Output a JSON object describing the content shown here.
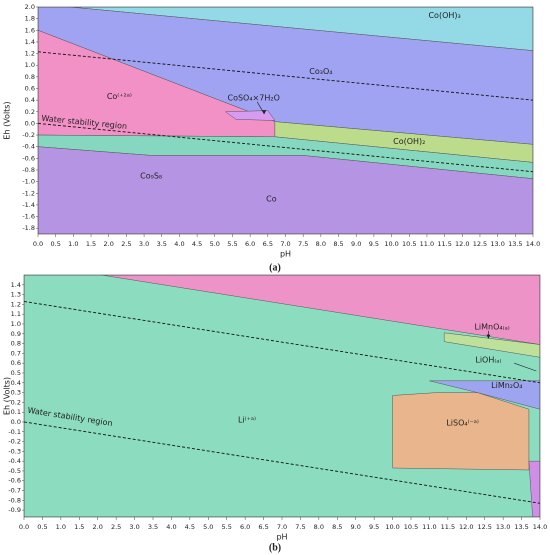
{
  "chart_data": [
    {
      "type": "region",
      "caption": "(a)",
      "x_label": "pH",
      "y_label": "Eh (Volts)",
      "xlim": [
        0,
        14
      ],
      "ylim": [
        -1.9,
        2.0
      ],
      "xticks": [
        {
          "value": 0,
          "label": "0.0"
        },
        0.5,
        {
          "value": 1,
          "label": "1.0"
        },
        1.5,
        {
          "value": 2,
          "label": "2.0"
        },
        2.5,
        {
          "value": 3,
          "label": "3.0"
        },
        3.5,
        {
          "value": 4,
          "label": "4.0"
        },
        4.5,
        {
          "value": 5,
          "label": "5.0"
        },
        5.5,
        {
          "value": 6,
          "label": "6.0"
        },
        6.5,
        {
          "value": 7,
          "label": "7.0"
        },
        7.5,
        {
          "value": 8,
          "label": "8.0"
        },
        8.5,
        {
          "value": 9,
          "label": "9.0"
        },
        9.5,
        {
          "value": 10,
          "label": "10.0"
        },
        10.5,
        {
          "value": 11,
          "label": "11.0"
        },
        11.5,
        {
          "value": 12,
          "label": "12.0"
        },
        12.5,
        {
          "value": 13,
          "label": "13.0"
        },
        13.5,
        {
          "value": 14,
          "label": "14.0"
        }
      ],
      "yticks": [
        {
          "value": 2,
          "label": "2.0"
        },
        1.8,
        1.6,
        1.4,
        1.2,
        {
          "value": 1,
          "label": "1.0"
        },
        0.8,
        0.6,
        0.4,
        0.2,
        {
          "value": 0,
          "label": "0.0"
        },
        -0.2,
        -0.4,
        -0.6,
        -0.8,
        {
          "value": -1,
          "label": "-1.0"
        },
        -1.2,
        -1.4,
        -1.6,
        -1.8
      ],
      "regions": [
        {
          "label": "Co(OH)₃",
          "color": "#93d9e6",
          "x": [
            0.9,
            14,
            14
          ],
          "y": [
            2.0,
            2.0,
            1.25
          ]
        },
        {
          "label": "Co₃O₄",
          "color": "#a0a3f2",
          "x": [
            0,
            0.9,
            14,
            14,
            6.7,
            0
          ],
          "y": [
            2.0,
            2.0,
            1.25,
            -0.36,
            0.03,
            1.6
          ]
        },
        {
          "label": "Co⁽⁺²ᵃ⁾",
          "color": "#f291c6",
          "x": [
            0,
            6.7,
            6.7,
            0
          ],
          "y": [
            1.6,
            0.03,
            -0.23,
            -0.2
          ]
        },
        {
          "label": "CoSO₄×7H₂O",
          "color": "#d59cf2",
          "x": [
            5.3,
            6.5,
            6.7,
            5.6
          ],
          "y": [
            0.2,
            0.22,
            0.05,
            0.07
          ]
        },
        {
          "label": "Co(OH)₂",
          "color": "#bcdc8c",
          "x": [
            6.7,
            14,
            14,
            6.7
          ],
          "y": [
            0.03,
            -0.36,
            -0.67,
            -0.23
          ]
        },
        {
          "label": "Co₉S₈",
          "color": "#85d8bf",
          "x": [
            0,
            6.7,
            14,
            14,
            7.5,
            3.2,
            0
          ],
          "y": [
            -0.2,
            -0.23,
            -0.67,
            -0.95,
            -0.55,
            -0.55,
            -0.4
          ]
        },
        {
          "label": "Co",
          "color": "#b595e3",
          "x": [
            0,
            3.2,
            7.5,
            14,
            14,
            0
          ],
          "y": [
            -0.4,
            -0.55,
            -0.55,
            -0.95,
            -1.9,
            -1.9
          ]
        }
      ],
      "lines": [
        {
          "x": [
            0,
            14
          ],
          "y": [
            1.23,
            0.4
          ]
        },
        {
          "x": [
            0,
            14
          ],
          "y": [
            0.0,
            -0.83
          ]
        }
      ],
      "annotation": "Water stability region"
    },
    {
      "type": "region",
      "caption": "(b)",
      "x_label": "pH",
      "y_label": "Eh (Volts)",
      "xlim": [
        0,
        14
      ],
      "ylim": [
        -0.97,
        1.5
      ],
      "xticks": [
        {
          "value": 0,
          "label": "0.0"
        },
        0.5,
        {
          "value": 1,
          "label": "1.0"
        },
        1.5,
        {
          "value": 2,
          "label": "2.0"
        },
        2.5,
        {
          "value": 3,
          "label": "3.0"
        },
        3.5,
        {
          "value": 4,
          "label": "4.0"
        },
        4.5,
        {
          "value": 5,
          "label": "5.0"
        },
        5.5,
        {
          "value": 6,
          "label": "6.0"
        },
        6.5,
        {
          "value": 7,
          "label": "7.0"
        },
        7.5,
        {
          "value": 8,
          "label": "8.0"
        },
        8.5,
        {
          "value": 9,
          "label": "9.0"
        },
        9.5,
        {
          "value": 10,
          "label": "10.0"
        },
        10.5,
        {
          "value": 11,
          "label": "11.0"
        },
        11.5,
        {
          "value": 12,
          "label": "12.0"
        },
        12.5,
        {
          "value": 13,
          "label": "13.0"
        },
        13.5,
        {
          "value": 14,
          "label": "14.0"
        }
      ],
      "yticks": [
        1.4,
        1.3,
        1.2,
        1.1,
        {
          "value": 1,
          "label": "1.0"
        },
        0.9,
        0.8,
        0.7,
        0.6,
        0.5,
        0.4,
        0.3,
        0.2,
        0.1,
        {
          "value": 0,
          "label": "0.0"
        },
        -0.1,
        -0.2,
        -0.3,
        -0.4,
        -0.5,
        -0.6,
        -0.7,
        -0.8,
        -0.9
      ],
      "regions": [
        {
          "label": "Li⁽⁺ᵃ⁾",
          "color": "#8cdcc0",
          "x": [
            0,
            14,
            14,
            0
          ],
          "y": [
            1.5,
            1.5,
            -0.97,
            -0.97
          ]
        },
        {
          "color": "#ee93c8",
          "x": [
            2.1,
            14,
            14
          ],
          "y": [
            1.5,
            1.5,
            0.79
          ]
        },
        {
          "label": "LiMnO₄₍ₐ₎",
          "color": "#bde09a",
          "x": [
            11.4,
            14,
            14,
            11.4
          ],
          "y": [
            0.91,
            0.79,
            0.66,
            0.82
          ]
        },
        {
          "label": "LiMn₂O₄",
          "color": "#9ea5f0",
          "x": [
            11,
            14,
            14,
            12.3
          ],
          "y": [
            0.42,
            0.42,
            0.13,
            0.3
          ]
        },
        {
          "label": "LiSO₄⁽⁻ᵃ⁾",
          "color": "#e8b58c",
          "x": [
            10,
            11.2,
            12.3,
            13.7,
            13.7,
            10
          ],
          "y": [
            0.27,
            0.3,
            0.3,
            0.13,
            -0.49,
            -0.47
          ]
        },
        {
          "color": "#cf8fe8",
          "x": [
            13.7,
            14,
            14,
            13.8
          ],
          "y": [
            -0.4,
            -0.4,
            -0.97,
            -0.97
          ]
        }
      ],
      "lines": [
        {
          "x": [
            0,
            14
          ],
          "y": [
            1.23,
            0.4
          ]
        },
        {
          "x": [
            0,
            14
          ],
          "y": [
            0.0,
            -0.83
          ]
        }
      ],
      "labels": [
        "LiOH₍ₐ₎"
      ],
      "annotation": "Water stability region"
    }
  ]
}
